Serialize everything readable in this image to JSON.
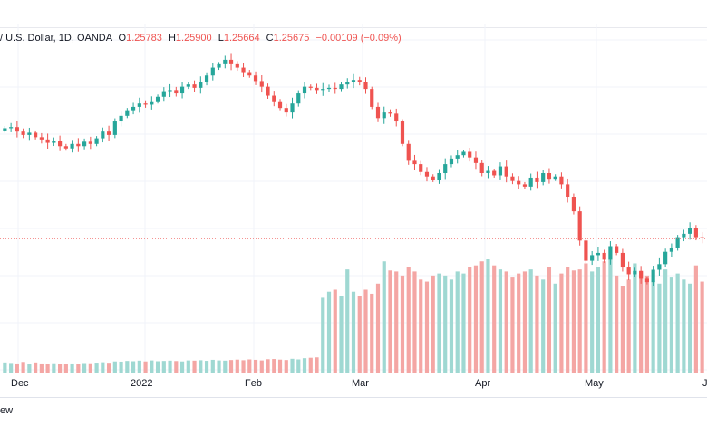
{
  "legend": {
    "symbol_text": "/ U.S. Dollar, 1D, OANDA",
    "o_label": "O",
    "o_value": "1.25783",
    "h_label": "H",
    "h_value": "1.25900",
    "l_label": "L",
    "l_value": "1.25664",
    "c_label": "C",
    "c_value": "1.25675",
    "change": "−0.00109 (−0.09%)"
  },
  "bottom_bar": {
    "partial_text": "ew"
  },
  "colors": {
    "up": "#26a69a",
    "down": "#ef5350",
    "up_volume": "#9fd8d2",
    "down_volume": "#f4a6a4",
    "grid": "#f0f3fa",
    "price_line": "#ef5350"
  },
  "chart_data": {
    "type": "candlestick",
    "symbol": "/ U.S. Dollar",
    "interval": "1D",
    "source": "OANDA",
    "x_labels": [
      "Dec",
      "2022",
      "Feb",
      "Mar",
      "Apr",
      "May",
      "J"
    ],
    "last_close": 1.25675,
    "grid": true,
    "legend": "top-left",
    "close": [
      1.355,
      1.356,
      1.352,
      1.349,
      1.351,
      1.347,
      1.345,
      1.342,
      1.344,
      1.339,
      1.337,
      1.341,
      1.339,
      1.343,
      1.341,
      1.346,
      1.352,
      1.349,
      1.361,
      1.366,
      1.371,
      1.374,
      1.377,
      1.376,
      1.379,
      1.383,
      1.388,
      1.389,
      1.386,
      1.392,
      1.394,
      1.391,
      1.396,
      1.402,
      1.409,
      1.412,
      1.416,
      1.412,
      1.409,
      1.405,
      1.402,
      1.397,
      1.392,
      1.384,
      1.379,
      1.373,
      1.369,
      1.377,
      1.386,
      1.392,
      1.391,
      1.389,
      1.39,
      1.391,
      1.39,
      1.394,
      1.396,
      1.398,
      1.396,
      1.39,
      1.374,
      1.364,
      1.369,
      1.368,
      1.361,
      1.341,
      1.326,
      1.323,
      1.316,
      1.312,
      1.309,
      1.315,
      1.323,
      1.328,
      1.331,
      1.334,
      1.329,
      1.324,
      1.315,
      1.317,
      1.313,
      1.321,
      1.312,
      1.308,
      1.305,
      1.303,
      1.311,
      1.307,
      1.315,
      1.31,
      1.312,
      1.305,
      1.294,
      1.281,
      1.255,
      1.237,
      1.242,
      1.244,
      1.238,
      1.25,
      1.244,
      1.231,
      1.225,
      1.228,
      1.221,
      1.218,
      1.229,
      1.234,
      1.245,
      1.248,
      1.258,
      1.261,
      1.266,
      1.258,
      1.257
    ],
    "volume": [
      100,
      95,
      90,
      105,
      85,
      100,
      90,
      88,
      92,
      86,
      84,
      90,
      88,
      94,
      92,
      98,
      102,
      97,
      110,
      108,
      115,
      112,
      118,
      110,
      120,
      112,
      115,
      118,
      114,
      110,
      120,
      118,
      122,
      116,
      126,
      120,
      118,
      124,
      128,
      122,
      130,
      126,
      120,
      132,
      134,
      128,
      124,
      136,
      130,
      142,
      146,
      150,
      740,
      800,
      820,
      760,
      1020,
      800,
      760,
      820,
      780,
      880,
      1100,
      1010,
      1000,
      960,
      1040,
      1000,
      920,
      900,
      960,
      980,
      960,
      920,
      1000,
      980,
      1040,
      1060,
      1100,
      1120,
      1060,
      1020,
      1000,
      940,
      980,
      1000,
      1020,
      960,
      920,
      1040,
      880,
      980,
      1040,
      1010,
      1020,
      1080,
      1000,
      1040,
      1100,
      1120,
      960,
      860,
      920,
      1080,
      1000,
      960,
      900,
      880,
      1020,
      940,
      980,
      920,
      880,
      1060,
      900
    ]
  }
}
